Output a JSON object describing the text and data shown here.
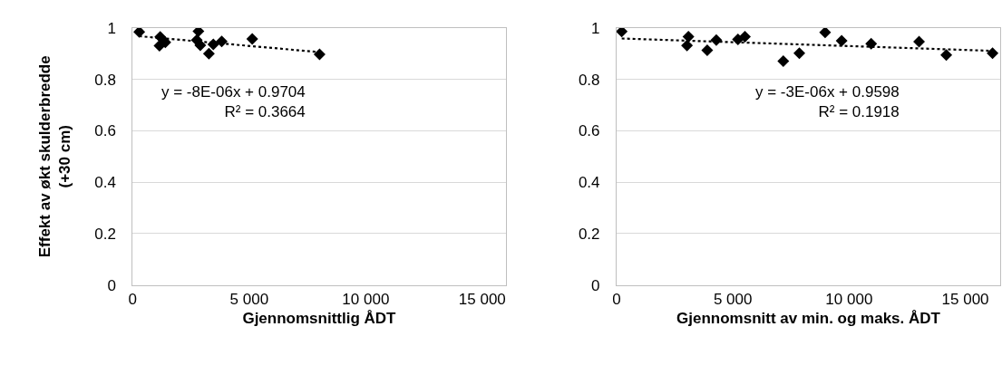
{
  "chart_data": [
    {
      "type": "scatter",
      "ylabel": "Effekt av økt skulderbredde\n(+30 cm)",
      "xlabel": "Gjennomsnittlig ÅDT",
      "xlim": [
        0,
        16000
      ],
      "xticks": [
        0,
        {
          "value": 5000,
          "label": "5 000"
        },
        {
          "value": 10000,
          "label": "10 000"
        },
        {
          "value": 15000,
          "label": "15 000"
        }
      ],
      "ylim": [
        0,
        1
      ],
      "yticks": [
        0,
        0.2,
        0.4,
        0.6,
        0.8,
        1
      ],
      "grid": "y",
      "marker": "diamond",
      "annotations": [
        "y = -8E-06x + 0.9704\nR² = 0.3664"
      ],
      "series": [
        {
          "color": "#000000",
          "x": [
            280,
            1180,
            1150,
            1400,
            2820,
            2750,
            2900,
            3270,
            3460,
            3820,
            5130,
            8020
          ],
          "values": [
            0.985,
            0.965,
            0.931,
            0.944,
            0.987,
            0.953,
            0.933,
            0.9,
            0.936,
            0.948,
            0.957,
            0.897
          ]
        },
        {
          "type": "line",
          "marker": "none",
          "line_style": "dotted",
          "color": "#000000",
          "x": [
            280,
            8020
          ],
          "values": [
            0.968,
            0.906
          ]
        }
      ]
    },
    {
      "type": "scatter",
      "xlabel": "Gjennomsnitt av min. og maks. ÅDT",
      "xlim": [
        0,
        16500
      ],
      "xticks": [
        0,
        {
          "value": 5000,
          "label": "5 000"
        },
        {
          "value": 10000,
          "label": "10 000"
        },
        {
          "value": 15000,
          "label": "15 000"
        }
      ],
      "ylim": [
        0,
        1
      ],
      "yticks": [
        0,
        0.2,
        0.4,
        0.6,
        0.8,
        1
      ],
      "grid": "y",
      "marker": "diamond",
      "annotations": [
        "y = -3E-06x + 0.9598\nR² = 0.1918"
      ],
      "series": [
        {
          "color": "#000000",
          "x": [
            222,
            3090,
            3030,
            3900,
            4290,
            5220,
            5520,
            7170,
            7860,
            8970,
            9680,
            10950,
            13010,
            14180,
            16170
          ],
          "values": [
            0.986,
            0.966,
            0.932,
            0.913,
            0.953,
            0.956,
            0.966,
            0.871,
            0.902,
            0.983,
            0.95,
            0.939,
            0.947,
            0.895,
            0.902
          ]
        },
        {
          "type": "line",
          "marker": "none",
          "line_style": "dotted",
          "color": "#000000",
          "x": [
            222,
            16170
          ],
          "values": [
            0.959,
            0.911
          ]
        }
      ]
    }
  ]
}
